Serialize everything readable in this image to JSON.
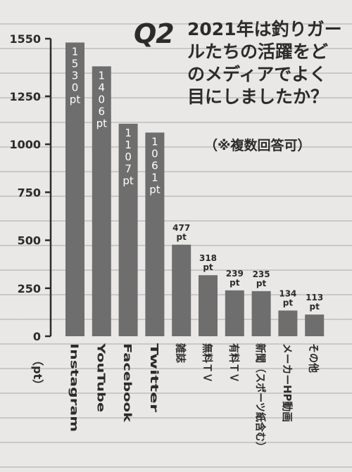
{
  "question": {
    "label": "Q2",
    "text": "2021年は釣りガールたちの活躍をどのメディアでよく目にしましたか？",
    "note": "（※複数回答可）"
  },
  "chart_data": {
    "type": "bar",
    "categories": [
      "Instagram",
      "YouTube",
      "Facebook",
      "Twitter",
      "雑誌",
      "無料ＴＶ",
      "有料ＴＶ",
      "新聞（スポーツ紙含む）",
      "メーカーHP動画",
      "その他"
    ],
    "values": [
      1530,
      1406,
      1107,
      1061,
      477,
      318,
      239,
      235,
      134,
      113
    ],
    "data_labels": [
      "1530pt",
      "1406pt",
      "1107pt",
      "1061pt",
      "477pt",
      "318pt",
      "239pt",
      "235pt",
      "134pt",
      "113pt"
    ],
    "ylim": [
      0,
      1550
    ],
    "yticks": [
      0,
      250,
      500,
      750,
      1000,
      1250,
      1550
    ],
    "y_unit_label": "（pt）",
    "bar_color": "#6e6e6e",
    "grid": false
  }
}
